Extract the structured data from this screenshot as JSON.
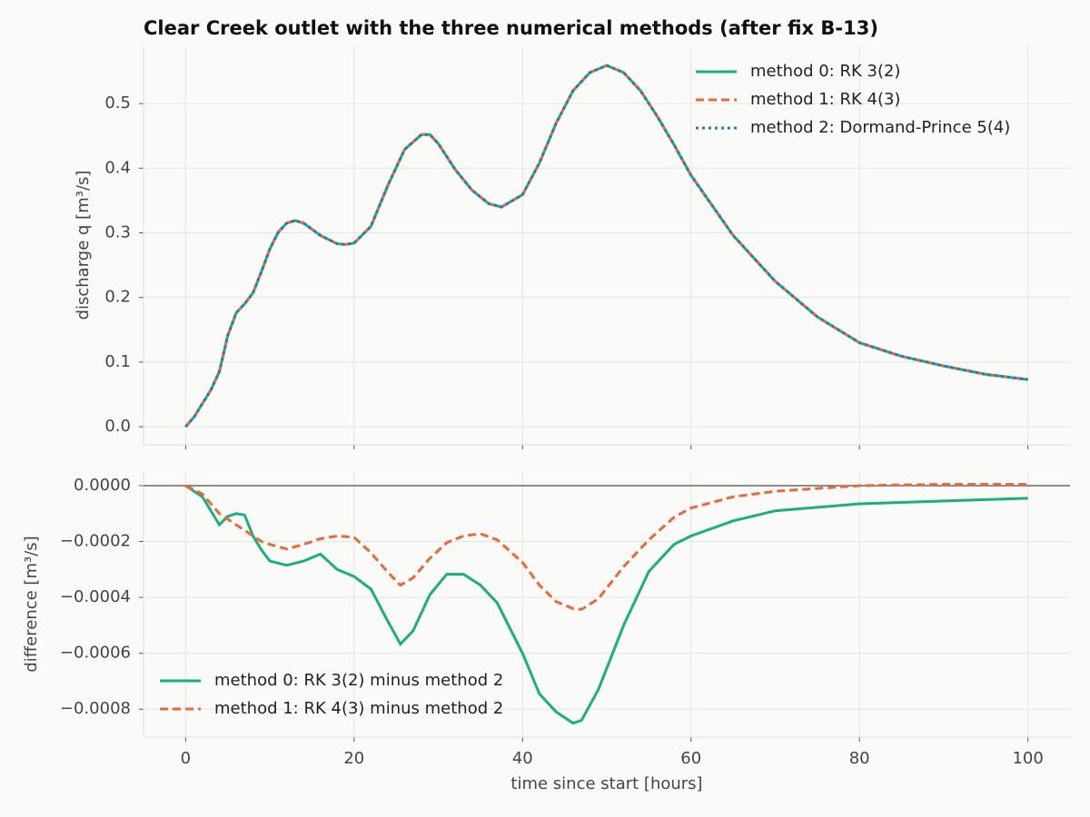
{
  "chart_data": [
    {
      "type": "line",
      "title": "Clear Creek outlet with the three numerical methods (after fix B-13)",
      "ylabel": "discharge q [m³/s]",
      "x": [
        0,
        1,
        3,
        4,
        5,
        6,
        7,
        8,
        9,
        10,
        11,
        12,
        13,
        14,
        16,
        18,
        19,
        20,
        22,
        24,
        26,
        28,
        29,
        30,
        32,
        34,
        36,
        37.5,
        40,
        42,
        44,
        46,
        48,
        50,
        52,
        54,
        56,
        58,
        60,
        65,
        70,
        75,
        80,
        85,
        90,
        95,
        100
      ],
      "series": [
        {
          "name": "method 0: RK 3(2)",
          "color": "#1baf7d",
          "style": "solid",
          "values": [
            0,
            0.015,
            0.057,
            0.085,
            0.141,
            0.176,
            0.19,
            0.207,
            0.24,
            0.275,
            0.301,
            0.315,
            0.319,
            0.315,
            0.296,
            0.283,
            0.282,
            0.284,
            0.31,
            0.373,
            0.429,
            0.452,
            0.452,
            0.438,
            0.398,
            0.366,
            0.345,
            0.34,
            0.359,
            0.408,
            0.47,
            0.52,
            0.548,
            0.559,
            0.548,
            0.52,
            0.48,
            0.436,
            0.389,
            0.296,
            0.225,
            0.17,
            0.13,
            0.109,
            0.094,
            0.081,
            0.073
          ]
        },
        {
          "name": "method 1: RK 4(3)",
          "color": "#e8693a",
          "style": "dashed",
          "values": [
            0,
            0.015,
            0.057,
            0.085,
            0.141,
            0.176,
            0.19,
            0.207,
            0.24,
            0.275,
            0.301,
            0.315,
            0.319,
            0.315,
            0.296,
            0.283,
            0.282,
            0.284,
            0.31,
            0.373,
            0.429,
            0.452,
            0.452,
            0.438,
            0.398,
            0.366,
            0.345,
            0.34,
            0.359,
            0.408,
            0.47,
            0.52,
            0.548,
            0.559,
            0.548,
            0.52,
            0.48,
            0.436,
            0.389,
            0.296,
            0.225,
            0.17,
            0.13,
            0.109,
            0.094,
            0.081,
            0.073
          ]
        },
        {
          "name": "method 2: Dormand-Prince 5(4)",
          "color": "#2a75c0",
          "style": "dotted",
          "values": [
            0,
            0.015,
            0.057,
            0.085,
            0.141,
            0.176,
            0.19,
            0.207,
            0.24,
            0.275,
            0.301,
            0.315,
            0.319,
            0.315,
            0.296,
            0.283,
            0.282,
            0.284,
            0.31,
            0.373,
            0.429,
            0.452,
            0.452,
            0.438,
            0.398,
            0.366,
            0.345,
            0.34,
            0.359,
            0.408,
            0.47,
            0.52,
            0.548,
            0.559,
            0.548,
            0.52,
            0.48,
            0.436,
            0.389,
            0.296,
            0.225,
            0.17,
            0.13,
            0.109,
            0.094,
            0.081,
            0.073
          ]
        }
      ],
      "xlim": [
        -5,
        105
      ],
      "xticks": [
        0,
        20,
        40,
        60,
        80,
        100
      ],
      "ylim": [
        -0.028,
        0.59
      ],
      "yticks": [
        {
          "value": 0,
          "label": "0.0"
        },
        0.1,
        0.2,
        0.3,
        0.4,
        0.5
      ],
      "grid": true,
      "legend": "upper right"
    },
    {
      "type": "line",
      "ylabel": "difference [m³/s]",
      "xlabel": "time since start [hours]",
      "x": [
        0,
        2,
        4,
        5,
        6,
        7,
        8,
        9,
        10,
        12,
        14,
        16,
        18,
        20,
        22,
        24,
        25.5,
        27,
        29,
        31,
        33,
        35,
        37,
        40,
        42,
        44,
        46,
        47,
        49,
        52,
        55,
        58,
        60,
        65,
        70,
        80,
        90,
        100
      ],
      "series": [
        {
          "name": "method 0: RK 3(2) minus method 2",
          "color": "#1baf7d",
          "style": "solid",
          "values": [
            0,
            -4e-05,
            -0.00014,
            -0.00011,
            -0.0001,
            -0.000105,
            -0.00018,
            -0.00023,
            -0.00027,
            -0.000285,
            -0.00027,
            -0.000245,
            -0.0003,
            -0.000325,
            -0.00037,
            -0.000485,
            -0.000567,
            -0.00052,
            -0.00039,
            -0.000317,
            -0.000317,
            -0.000356,
            -0.00042,
            -0.0006,
            -0.000745,
            -0.00081,
            -0.00085,
            -0.00084,
            -0.00073,
            -0.0005,
            -0.000307,
            -0.00021,
            -0.00018,
            -0.000126,
            -9e-05,
            -6.5e-05,
            -5.5e-05,
            -4.5e-05
          ]
        },
        {
          "name": "method 1: RK 4(3) minus method 2",
          "color": "#e8693a",
          "style": "dashed",
          "values": [
            0,
            -3e-05,
            -0.0001,
            -0.00012,
            -0.00014,
            -0.00016,
            -0.00018,
            -0.0002,
            -0.00021,
            -0.000227,
            -0.00021,
            -0.00019,
            -0.00018,
            -0.000185,
            -0.00024,
            -0.00031,
            -0.000356,
            -0.00033,
            -0.00026,
            -0.000204,
            -0.00018,
            -0.000172,
            -0.000194,
            -0.000275,
            -0.000356,
            -0.000415,
            -0.00044,
            -0.000443,
            -0.000405,
            -0.00029,
            -0.000194,
            -0.000113,
            -8e-05,
            -4e-05,
            -2e-05,
            0,
            5e-06,
            5e-06
          ]
        }
      ],
      "hline": 0,
      "xlim": [
        -5,
        105
      ],
      "xticks": [
        0,
        20,
        40,
        60,
        80,
        100
      ],
      "ylim": [
        -0.0009,
        5.2e-05
      ],
      "yticks": [
        {
          "value": 0,
          "label": "0.0000"
        },
        {
          "value": -0.0002,
          "label": "−0.0002"
        },
        {
          "value": -0.0004,
          "label": "−0.0004"
        },
        {
          "value": -0.0006,
          "label": "−0.0006"
        },
        {
          "value": -0.0008,
          "label": "−0.0008"
        }
      ],
      "grid": true,
      "legend": "lower left"
    }
  ]
}
